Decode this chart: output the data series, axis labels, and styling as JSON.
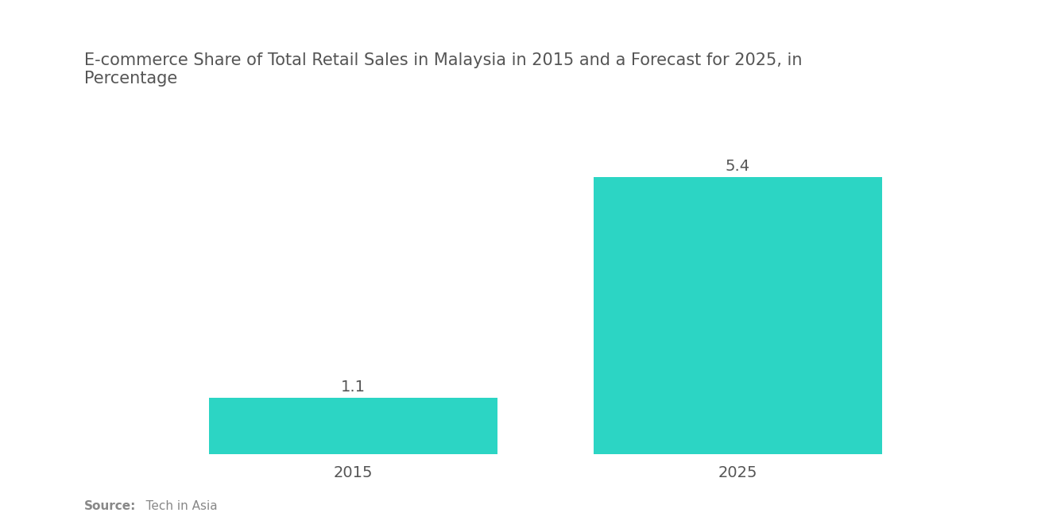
{
  "title": "E-commerce Share of Total Retail Sales in Malaysia in 2015 and a Forecast for 2025, in\nPercentage",
  "categories": [
    "2015",
    "2025"
  ],
  "values": [
    1.1,
    5.4
  ],
  "bar_color": "#2CD5C4",
  "background_color": "#ffffff",
  "label_fontsize": 14,
  "title_fontsize": 15,
  "tick_fontsize": 14,
  "source_bold": "Source:",
  "source_rest": "   Tech in Asia",
  "ylim": [
    0,
    6.8
  ],
  "bar_width": 0.75,
  "xlim": [
    -0.7,
    1.7
  ]
}
